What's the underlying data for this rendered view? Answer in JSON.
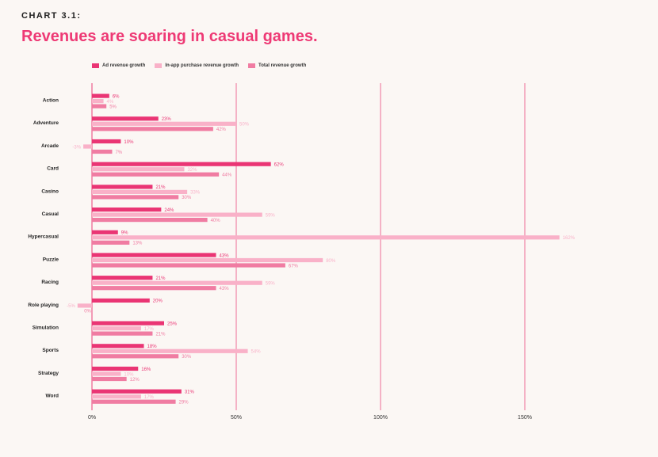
{
  "header": {
    "label": "CHART 3.1:",
    "title": "Revenues are soaring in casual games."
  },
  "colors": {
    "background": "#fbf7f4",
    "title": "#ee3a75",
    "ad": "#ea3574",
    "iap": "#f9b1c8",
    "total": "#f07ca2",
    "grid": "#ec5c8c"
  },
  "chart_data": {
    "type": "bar",
    "orientation": "horizontal",
    "categories": [
      "Action",
      "Adventure",
      "Arcade",
      "Card",
      "Casino",
      "Casual",
      "Hypercasual",
      "Puzzle",
      "Racing",
      "Role playing",
      "Simulation",
      "Sports",
      "Strategy",
      "Word"
    ],
    "series": [
      {
        "name": "Ad revenue growth",
        "values": [
          6,
          23,
          10,
          62,
          21,
          24,
          9,
          43,
          21,
          20,
          25,
          18,
          16,
          31
        ],
        "labels": [
          "6%",
          "23%",
          "10%",
          "62%",
          "21%",
          "24%",
          "9%",
          "43%",
          "21%",
          "20%",
          "25%",
          "18%",
          "16%",
          "31%"
        ]
      },
      {
        "name": "In-app purchase revenue growth",
        "values": [
          4,
          50,
          -3,
          32,
          33,
          59,
          162,
          80,
          59,
          -5,
          17,
          54,
          10,
          17
        ],
        "labels": [
          "4%",
          "50%",
          "-3%",
          "32%",
          "33%",
          "59%",
          "162%",
          "80%",
          "59%",
          "-5%",
          "17%",
          "54%",
          "10%",
          "17%"
        ]
      },
      {
        "name": "Total revenue growth",
        "values": [
          5,
          42,
          7,
          44,
          30,
          40,
          13,
          67,
          43,
          0,
          21,
          30,
          12,
          29
        ],
        "labels": [
          "5%",
          "42%",
          "7%",
          "44%",
          "30%",
          "40%",
          "13%",
          "67%",
          "43%",
          "0%",
          "21%",
          "30%",
          "12%",
          "29%"
        ]
      }
    ],
    "xticks": [
      0,
      50,
      100,
      150
    ],
    "xtick_labels": [
      "0%",
      "50%",
      "100%",
      "150%"
    ],
    "xlim": [
      -5,
      162
    ],
    "legend_position": "top",
    "grid": true
  }
}
